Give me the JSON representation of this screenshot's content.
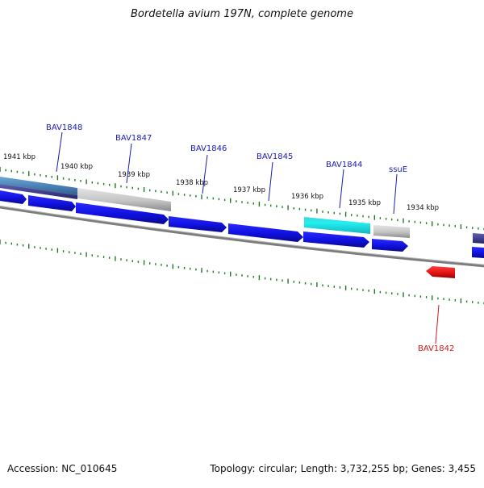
{
  "title": "Bordetella avium 197N, complete genome",
  "footer": {
    "accession": "Accession: NC_010645",
    "summary": "Topology: circular; Length: 3,732,255 bp; Genes: 3,455"
  },
  "colors": {
    "cds": "#1010e0",
    "cds_edge": "#3a3aff",
    "rrna_grey": "#c4c4c4",
    "cyan": "#22e0e8",
    "steelblue": "#4a84b8",
    "darknavy": "#44448c",
    "red": "#e01010",
    "tick": "#1f7a1f",
    "backbone": "#808080",
    "gene_label": "#1a1ab4",
    "red_label": "#d01818"
  },
  "scale_labels": [
    "1941 kbp",
    "1940 kbp",
    "1939 kbp",
    "1938 kbp",
    "1937 kbp",
    "1936 kbp",
    "1935 kbp",
    "1934 kbp"
  ],
  "gene_labels": [
    {
      "text": "BAV1848",
      "color": "blue"
    },
    {
      "text": "BAV1847",
      "color": "blue"
    },
    {
      "text": "BAV1846",
      "color": "blue"
    },
    {
      "text": "BAV1845",
      "color": "blue"
    },
    {
      "text": "BAV1844",
      "color": "blue"
    },
    {
      "text": "ssuE",
      "color": "blue"
    },
    {
      "text": "BAV1842",
      "color": "red"
    }
  ]
}
